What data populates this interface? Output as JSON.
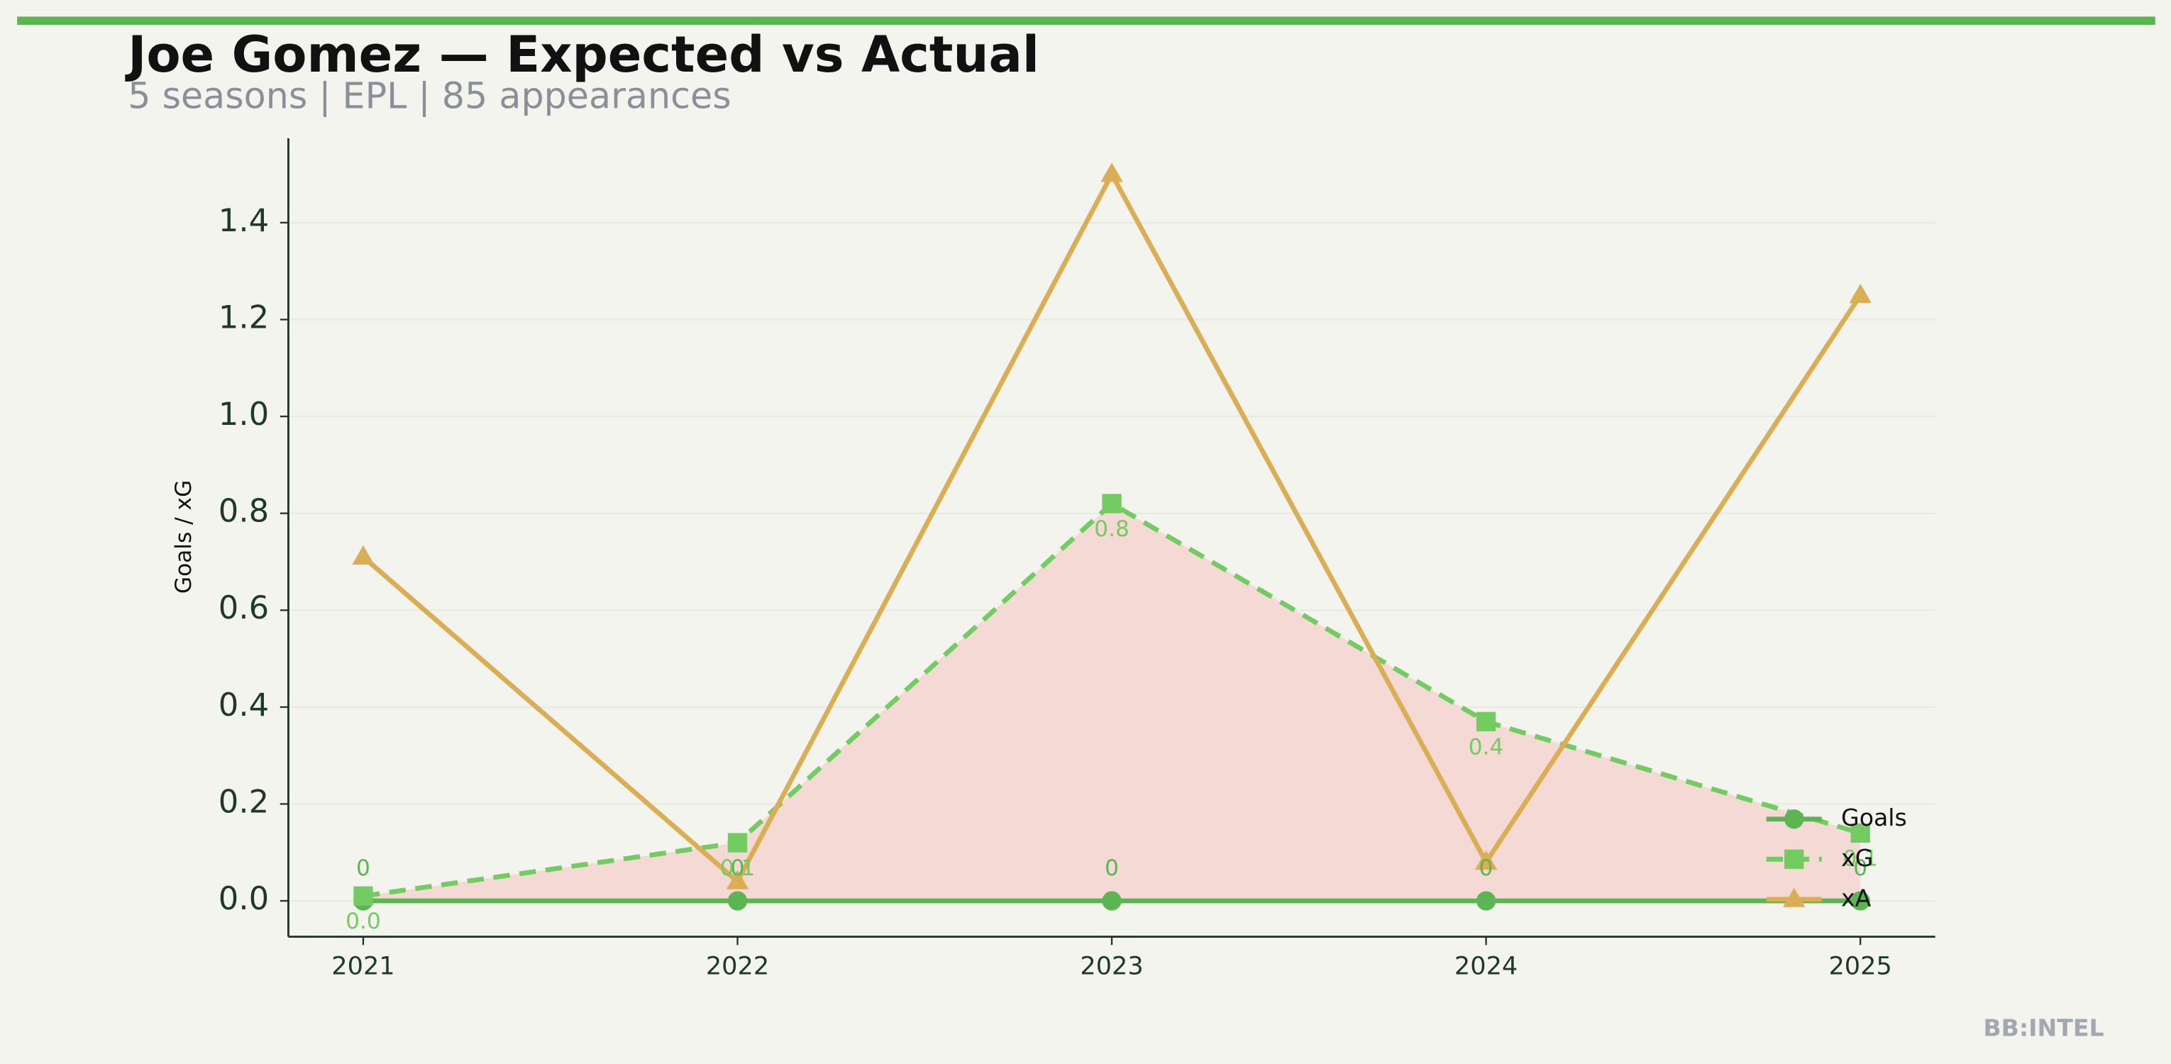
{
  "chart_data": {
    "type": "line",
    "title": "Joe Gomez — Expected vs Actual",
    "subtitle": "5 seasons | EPL | 85 appearances",
    "ylabel": "Goals / xG",
    "watermark": "BB:INTEL",
    "categories": [
      "2021",
      "2022",
      "2023",
      "2024",
      "2025"
    ],
    "series": [
      {
        "name": "Goals",
        "color": "#5ab552",
        "marker": "circle",
        "dash": false,
        "values": [
          0,
          0,
          0,
          0,
          0
        ]
      },
      {
        "name": "xG",
        "color": "#72cc62",
        "marker": "square",
        "dash": true,
        "values": [
          0.01,
          0.12,
          0.82,
          0.37,
          0.14
        ],
        "value_labels": [
          "0.0",
          "0.1",
          "0.8",
          "0.4",
          "0.1"
        ]
      },
      {
        "name": "xA",
        "color": "#d9ae55",
        "marker": "triangle",
        "dash": false,
        "values": [
          0.71,
          0.04,
          1.5,
          0.08,
          1.25
        ]
      }
    ],
    "fill_color": "#f5d9d5",
    "ylim": [
      -0.074,
      1.574
    ],
    "yticks": [
      {
        "value": 0,
        "label": "0.0"
      },
      0.2,
      0.4,
      0.6,
      0.8,
      {
        "value": 1,
        "label": "1.0"
      },
      1.2,
      1.4
    ],
    "grid": true,
    "legend": "lower right"
  }
}
